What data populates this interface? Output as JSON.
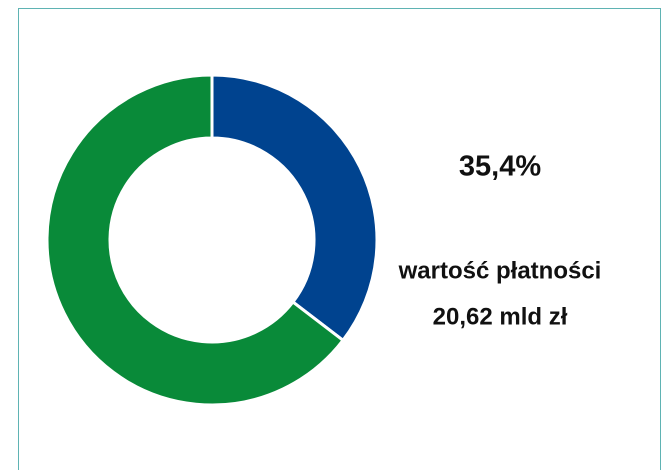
{
  "chart_data": {
    "type": "donut",
    "values": [
      35.4,
      64.6
    ],
    "value_labels": [
      "35,4%",
      null
    ],
    "colors": [
      "#00438f",
      "#098a39"
    ],
    "annotations": [
      "wartość płatności",
      "20,62 mld zł"
    ]
  }
}
